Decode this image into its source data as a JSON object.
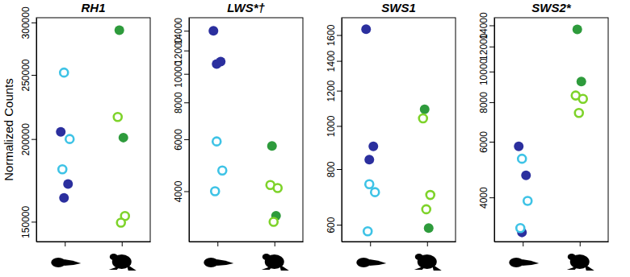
{
  "chart_data": [
    {
      "type": "scatter",
      "title": "RH1",
      "ylabel": "Normalized Counts",
      "log": "y",
      "categories": [
        null,
        null
      ],
      "ylim": [
        140000,
        305000
      ],
      "yticks": [
        150000,
        200000,
        250000,
        300000
      ],
      "series": [
        {
          "color": "#2b2f9e",
          "marker": "filled",
          "values": [
            [
              205000,
              171000,
              163000
            ],
            []
          ]
        },
        {
          "color": "#3ec3e6",
          "marker": "open",
          "values": [
            [
              252000,
              200000,
              180000
            ],
            []
          ]
        },
        {
          "color": "#2e9b3c",
          "marker": "filled",
          "values": [
            [],
            [
              292000,
              201000
            ]
          ]
        },
        {
          "color": "#7ed32a",
          "marker": "open",
          "values": [
            [],
            [
              216000,
              153000,
              149500
            ]
          ]
        }
      ]
    },
    {
      "type": "scatter",
      "title": "LWS*†",
      "log": "y",
      "categories": [
        null,
        null
      ],
      "ylim": [
        2700,
        15500
      ],
      "yticks": [
        4000,
        6000,
        8000,
        10000,
        12000,
        14000
      ],
      "series": [
        {
          "color": "#2b2f9e",
          "marker": "filled",
          "values": [
            [
              14000,
              11000,
              10800
            ],
            []
          ]
        },
        {
          "color": "#3ec3e6",
          "marker": "open",
          "values": [
            [
              5900,
              4700,
              4000
            ],
            []
          ]
        },
        {
          "color": "#2e9b3c",
          "marker": "filled",
          "values": [
            [],
            [
              5700,
              3300
            ]
          ]
        },
        {
          "color": "#7ed32a",
          "marker": "open",
          "values": [
            [],
            [
              4200,
              4100,
              3150
            ]
          ]
        }
      ]
    },
    {
      "type": "scatter",
      "title": "SWS1",
      "log": "y",
      "categories": [
        null,
        null
      ],
      "ylim": [
        550,
        1750
      ],
      "yticks": [
        600,
        800,
        1000,
        1200,
        1400,
        1600
      ],
      "series": [
        {
          "color": "#2b2f9e",
          "marker": "filled",
          "values": [
            [
              1650,
              900,
              840
            ],
            []
          ]
        },
        {
          "color": "#3ec3e6",
          "marker": "open",
          "values": [
            [
              740,
              710,
              580
            ],
            []
          ]
        },
        {
          "color": "#2e9b3c",
          "marker": "filled",
          "values": [
            [],
            [
              1090,
              590
            ]
          ]
        },
        {
          "color": "#7ed32a",
          "marker": "open",
          "values": [
            [],
            [
              1040,
              700,
              650
            ]
          ]
        }
      ]
    },
    {
      "type": "scatter",
      "title": "SWS2*",
      "log": "y",
      "categories": [
        null,
        null
      ],
      "ylim": [
        2900,
        14800
      ],
      "yticks": [
        4000,
        6000,
        8000,
        10000,
        12000,
        14000
      ],
      "series": [
        {
          "color": "#2b2f9e",
          "marker": "filled",
          "values": [
            [
              5800,
              4700,
              3100
            ],
            []
          ]
        },
        {
          "color": "#3ec3e6",
          "marker": "open",
          "values": [
            [
              5300,
              3900,
              3200
            ],
            []
          ]
        },
        {
          "color": "#2e9b3c",
          "marker": "filled",
          "values": [
            [],
            [
              13600,
              9300
            ]
          ]
        },
        {
          "color": "#7ed32a",
          "marker": "open",
          "values": [
            [],
            [
              8400,
              8200,
              7400
            ]
          ]
        }
      ]
    }
  ]
}
